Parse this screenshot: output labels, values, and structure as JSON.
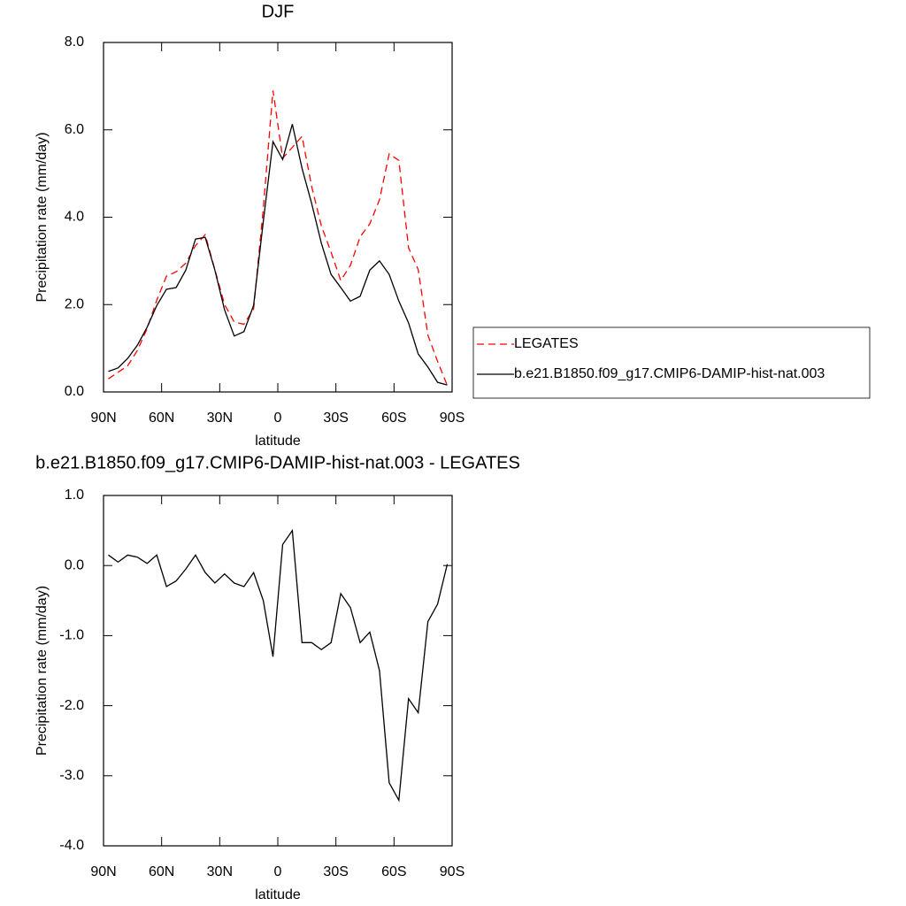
{
  "chart_data": [
    {
      "type": "line",
      "title": "DJF",
      "xlabel": "latitude",
      "ylabel": "Precipitation rate (mm/day)",
      "x": [
        87.5,
        82.5,
        77.5,
        72.5,
        67.5,
        62.5,
        57.5,
        52.5,
        47.5,
        42.5,
        37.5,
        32.5,
        27.5,
        22.5,
        17.5,
        12.5,
        7.5,
        2.5,
        -2.5,
        -7.5,
        -12.5,
        -17.5,
        -22.5,
        -27.5,
        -32.5,
        -37.5,
        -42.5,
        -47.5,
        -52.5,
        -57.5,
        -62.5,
        -67.5,
        -72.5,
        -77.5,
        -82.5,
        -87.5
      ],
      "series": [
        {
          "name": "LEGATES",
          "color": "#ff0000",
          "line_style": "dashed",
          "values": [
            0.3,
            0.45,
            0.6,
            0.95,
            1.45,
            2.1,
            2.65,
            2.75,
            2.95,
            3.35,
            3.6,
            2.8,
            2.0,
            1.6,
            1.55,
            1.9,
            4.2,
            6.9,
            5.35,
            5.6,
            5.85,
            4.7,
            3.8,
            3.2,
            2.55,
            2.9,
            3.55,
            3.85,
            4.4,
            5.45,
            5.3,
            3.3,
            2.8,
            1.3,
            0.7,
            0.15
          ]
        },
        {
          "name": "b.e21.B1850.f09_g17.CMIP6-DAMIP-hist-nat.003",
          "color": "#000000",
          "line_style": "solid",
          "values": [
            0.47,
            0.55,
            0.77,
            1.07,
            1.48,
            1.98,
            2.35,
            2.39,
            2.79,
            3.5,
            3.54,
            2.79,
            1.88,
            1.28,
            1.38,
            1.98,
            3.9,
            5.73,
            5.32,
            6.13,
            5.12,
            4.31,
            3.4,
            2.69,
            2.39,
            2.08,
            2.19,
            2.79,
            3.0,
            2.69,
            2.08,
            1.58,
            0.87,
            0.57,
            0.22,
            0.16
          ]
        }
      ],
      "xlim": [
        90,
        -90
      ],
      "xticks": [
        {
          "value": 90,
          "label": "90N"
        },
        {
          "value": 60,
          "label": "60N"
        },
        {
          "value": 30,
          "label": "30N"
        },
        0,
        {
          "value": -30,
          "label": "30S"
        },
        {
          "value": -60,
          "label": "60S"
        },
        {
          "value": -90,
          "label": "90S"
        }
      ],
      "ylim": [
        0,
        8
      ],
      "yticks": [
        {
          "value": 0,
          "label": "0.0"
        },
        {
          "value": 2,
          "label": "2.0"
        },
        {
          "value": 4,
          "label": "4.0"
        },
        {
          "value": 6,
          "label": "6.0"
        },
        {
          "value": 8,
          "label": "8.0"
        }
      ],
      "legend": "right"
    },
    {
      "type": "line",
      "title": "b.e21.B1850.f09_g17.CMIP6-DAMIP-hist-nat.003 - LEGATES",
      "xlabel": "latitude",
      "ylabel": "Precipitation rate (mm/day)",
      "x": [
        87.5,
        82.5,
        77.5,
        72.5,
        67.5,
        62.5,
        57.5,
        52.5,
        47.5,
        42.5,
        37.5,
        32.5,
        27.5,
        22.5,
        17.5,
        12.5,
        7.5,
        2.5,
        -2.5,
        -7.5,
        -12.5,
        -17.5,
        -22.5,
        -27.5,
        -32.5,
        -37.5,
        -42.5,
        -47.5,
        -52.5,
        -57.5,
        -62.5,
        -67.5,
        -72.5,
        -77.5,
        -82.5,
        -87.5
      ],
      "series": [
        {
          "color": "#000000",
          "line_style": "solid",
          "values": [
            0.15,
            0.05,
            0.15,
            0.12,
            0.03,
            0.15,
            -0.3,
            -0.22,
            -0.05,
            0.15,
            -0.1,
            -0.25,
            -0.12,
            -0.25,
            -0.3,
            -0.1,
            -0.5,
            -1.3,
            0.3,
            0.5,
            -1.1,
            -1.1,
            -1.2,
            -1.1,
            -0.4,
            -0.6,
            -1.1,
            -0.95,
            -1.5,
            -3.1,
            -3.35,
            -1.9,
            -2.1,
            -0.8,
            -0.55,
            0.02
          ]
        }
      ],
      "xlim": [
        90,
        -90
      ],
      "xticks": [
        {
          "value": 90,
          "label": "90N"
        },
        {
          "value": 60,
          "label": "60N"
        },
        {
          "value": 30,
          "label": "30N"
        },
        0,
        {
          "value": -30,
          "label": "30S"
        },
        {
          "value": -60,
          "label": "60S"
        },
        {
          "value": -90,
          "label": "90S"
        }
      ],
      "ylim": [
        -4,
        1
      ],
      "yticks": [
        {
          "value": -4,
          "label": "-4.0"
        },
        {
          "value": -3,
          "label": "-3.0"
        },
        {
          "value": -2,
          "label": "-2.0"
        },
        {
          "value": -1,
          "label": "-1.0"
        },
        {
          "value": 0,
          "label": "0.0"
        },
        {
          "value": 1,
          "label": "1.0"
        }
      ]
    }
  ]
}
